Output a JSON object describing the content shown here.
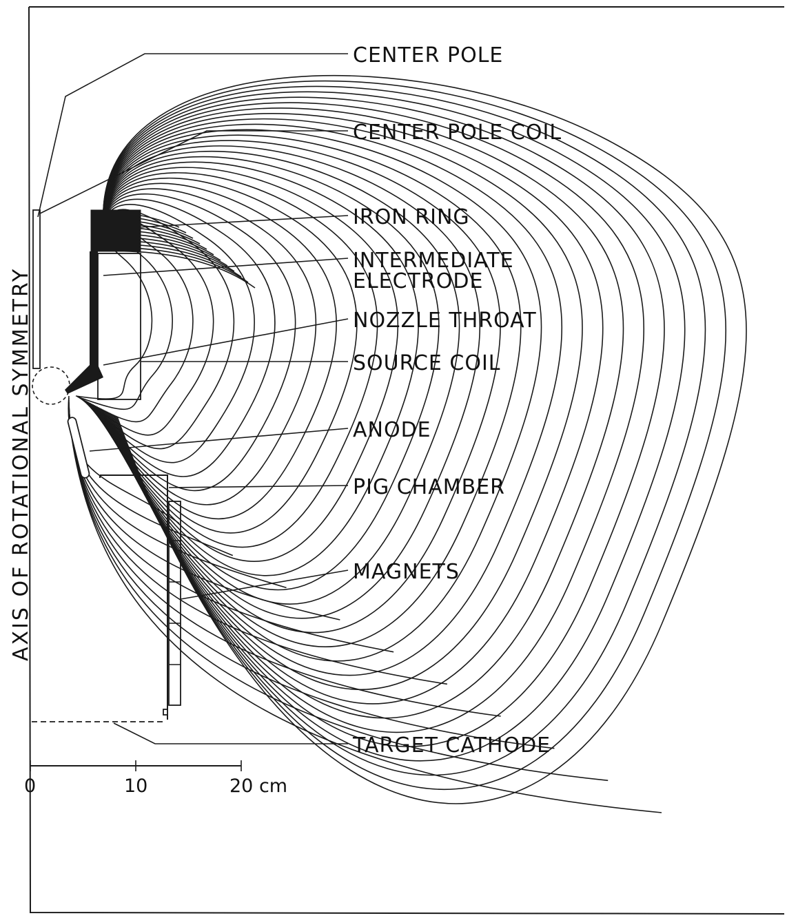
{
  "diagram": {
    "axis_label": "AXIS OF ROTATIONAL SYMMETRY",
    "labels": [
      {
        "id": "center-pole",
        "text": "CENTER POLE"
      },
      {
        "id": "center-pole-coil",
        "text": "CENTER POLE COIL"
      },
      {
        "id": "iron-ring",
        "text": "IRON RING"
      },
      {
        "id": "intermediate-electrode-1",
        "text": "INTERMEDIATE"
      },
      {
        "id": "intermediate-electrode-2",
        "text": "ELECTRODE"
      },
      {
        "id": "nozzle-throat",
        "text": "NOZZLE THROAT"
      },
      {
        "id": "source-coil",
        "text": "SOURCE COIL"
      },
      {
        "id": "anode",
        "text": "ANODE"
      },
      {
        "id": "pig-chamber",
        "text": "PIG CHAMBER"
      },
      {
        "id": "magnets",
        "text": "MAGNETS"
      },
      {
        "id": "target-cathode",
        "text": "TARGET CATHODE"
      }
    ],
    "scale": {
      "ticks": [
        "0",
        "10",
        "20 cm"
      ]
    }
  },
  "colors": {
    "ink": "#1a1a1a",
    "paper": "#ffffff"
  }
}
